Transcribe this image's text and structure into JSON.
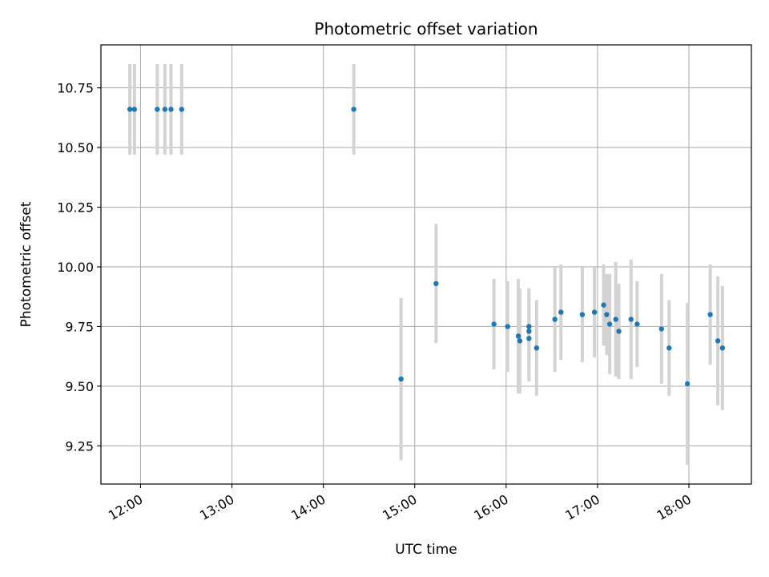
{
  "chart_data": {
    "type": "scatter",
    "title": "Photometric offset variation",
    "xlabel": "UTC time",
    "ylabel": "Photometric offset",
    "x_is_time": true,
    "xlim": [
      "11:34",
      "18:41"
    ],
    "ylim": [
      9.09,
      10.93
    ],
    "x_ticks": [
      "12:00",
      "13:00",
      "14:00",
      "15:00",
      "16:00",
      "17:00",
      "18:00"
    ],
    "y_ticks": [
      "9.25",
      "9.50",
      "9.75",
      "10.00",
      "10.25",
      "10.50",
      "10.75"
    ],
    "grid": true,
    "colors": {
      "marker": "#1f77b4",
      "errorbar": "#d3d3d3",
      "grid": "#b0b0b0",
      "axis": "#000000"
    },
    "series": [
      {
        "points": [
          {
            "x": "11:53",
            "y": 10.66,
            "err": 0.19
          },
          {
            "x": "11:56",
            "y": 10.66,
            "err": 0.19
          },
          {
            "x": "12:11",
            "y": 10.66,
            "err": 0.19
          },
          {
            "x": "12:16",
            "y": 10.66,
            "err": 0.19
          },
          {
            "x": "12:20",
            "y": 10.66,
            "err": 0.19
          },
          {
            "x": "12:27",
            "y": 10.66,
            "err": 0.19
          },
          {
            "x": "14:20",
            "y": 10.66,
            "err": 0.19
          },
          {
            "x": "14:51",
            "y": 9.53,
            "err": 0.34
          },
          {
            "x": "15:14",
            "y": 9.93,
            "err": 0.25
          },
          {
            "x": "15:52",
            "y": 9.76,
            "err": 0.19
          },
          {
            "x": "16:01",
            "y": 9.75,
            "err": 0.19
          },
          {
            "x": "16:08",
            "y": 9.71,
            "err": 0.24
          },
          {
            "x": "16:09",
            "y": 9.69,
            "err": 0.22
          },
          {
            "x": "16:15",
            "y": 9.75,
            "err": 0.16
          },
          {
            "x": "16:15",
            "y": 9.73,
            "err": 0.15
          },
          {
            "x": "16:15",
            "y": 9.7,
            "err": 0.18
          },
          {
            "x": "16:20",
            "y": 9.66,
            "err": 0.2
          },
          {
            "x": "16:32",
            "y": 9.78,
            "err": 0.22
          },
          {
            "x": "16:36",
            "y": 9.81,
            "err": 0.2
          },
          {
            "x": "16:50",
            "y": 9.8,
            "err": 0.2
          },
          {
            "x": "16:58",
            "y": 9.81,
            "err": 0.19
          },
          {
            "x": "17:04",
            "y": 9.84,
            "err": 0.17
          },
          {
            "x": "17:06",
            "y": 9.8,
            "err": 0.17
          },
          {
            "x": "17:08",
            "y": 9.76,
            "err": 0.21
          },
          {
            "x": "17:12",
            "y": 9.78,
            "err": 0.24
          },
          {
            "x": "17:14",
            "y": 9.73,
            "err": 0.2
          },
          {
            "x": "17:22",
            "y": 9.78,
            "err": 0.25
          },
          {
            "x": "17:26",
            "y": 9.76,
            "err": 0.18
          },
          {
            "x": "17:42",
            "y": 9.74,
            "err": 0.23
          },
          {
            "x": "17:47",
            "y": 9.66,
            "err": 0.2
          },
          {
            "x": "17:59",
            "y": 9.51,
            "err": 0.34
          },
          {
            "x": "18:14",
            "y": 9.8,
            "err": 0.21
          },
          {
            "x": "18:19",
            "y": 9.69,
            "err": 0.27
          },
          {
            "x": "18:22",
            "y": 9.66,
            "err": 0.26
          }
        ]
      }
    ]
  }
}
